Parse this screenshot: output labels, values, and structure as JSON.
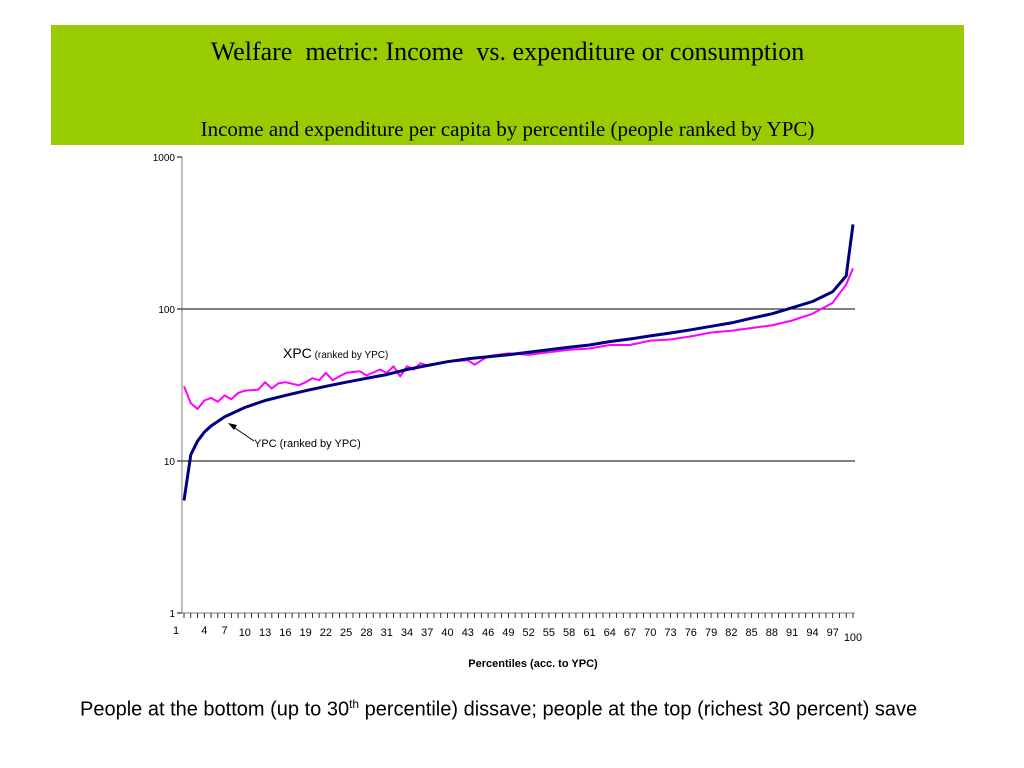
{
  "header": {
    "title": "Welfare  metric: Income  vs. expenditure or consumption",
    "subtitle": "Income and expenditure per capita by percentile (people ranked by YPC)",
    "bg_color": "#99cc00"
  },
  "chart_data": {
    "type": "line",
    "title": "",
    "xlabel": "Percentiles (acc. to YPC)",
    "ylabel": "",
    "yscale": "log",
    "ylim": [
      1,
      1000
    ],
    "xlim": [
      1,
      100
    ],
    "y_ticks": [
      1,
      10,
      100,
      1000
    ],
    "y_tick_labels": [
      "1",
      "10",
      "100",
      "1000"
    ],
    "gridlines_y": [
      10,
      100
    ],
    "x_tick_labels": [
      {
        "x": 1,
        "label": "1"
      },
      {
        "x": 4,
        "label": "4"
      },
      {
        "x": 7,
        "label": "7"
      },
      {
        "x": 10,
        "label": "10"
      },
      {
        "x": 13,
        "label": "13"
      },
      {
        "x": 16,
        "label": "16"
      },
      {
        "x": 19,
        "label": "19"
      },
      {
        "x": 22,
        "label": "22"
      },
      {
        "x": 25,
        "label": "25"
      },
      {
        "x": 28,
        "label": "28"
      },
      {
        "x": 31,
        "label": "31"
      },
      {
        "x": 34,
        "label": "34"
      },
      {
        "x": 37,
        "label": "37"
      },
      {
        "x": 40,
        "label": "40"
      },
      {
        "x": 43,
        "label": "43"
      },
      {
        "x": 46,
        "label": "46"
      },
      {
        "x": 49,
        "label": "49"
      },
      {
        "x": 52,
        "label": "52"
      },
      {
        "x": 55,
        "label": "55"
      },
      {
        "x": 58,
        "label": "58"
      },
      {
        "x": 61,
        "label": "61"
      },
      {
        "x": 64,
        "label": "64"
      },
      {
        "x": 67,
        "label": "67"
      },
      {
        "x": 70,
        "label": "70"
      },
      {
        "x": 73,
        "label": "73"
      },
      {
        "x": 76,
        "label": "76"
      },
      {
        "x": 79,
        "label": "79"
      },
      {
        "x": 82,
        "label": "82"
      },
      {
        "x": 85,
        "label": "85"
      },
      {
        "x": 88,
        "label": "88"
      },
      {
        "x": 91,
        "label": "91"
      },
      {
        "x": 94,
        "label": "94"
      },
      {
        "x": 97,
        "label": "97"
      },
      {
        "x": 100,
        "label": "100"
      }
    ],
    "series": [
      {
        "name": "YPC (ranked by YPC)",
        "color": "#000080",
        "x": [
          1,
          2,
          3,
          4,
          5,
          7,
          10,
          13,
          16,
          19,
          22,
          25,
          28,
          31,
          34,
          37,
          40,
          43,
          46,
          49,
          52,
          55,
          58,
          61,
          64,
          67,
          70,
          73,
          76,
          79,
          82,
          85,
          88,
          91,
          94,
          97,
          99,
          100
        ],
        "y": [
          5.5,
          11,
          13.5,
          15.5,
          17,
          19.5,
          22.5,
          25,
          27,
          29,
          31,
          33,
          35,
          37,
          40,
          42.5,
          45,
          47,
          48.5,
          50,
          52,
          54,
          56,
          58,
          61,
          63.5,
          66.5,
          69.5,
          73,
          77,
          81,
          87,
          93,
          102,
          112,
          130,
          165,
          360
        ]
      },
      {
        "name": "XPC (ranked by YPC)",
        "color": "#ff00ff",
        "x": [
          1,
          2,
          3,
          4,
          5,
          6,
          7,
          8,
          9,
          10,
          12,
          13,
          14,
          15,
          16,
          18,
          19,
          20,
          21,
          22,
          23,
          24,
          25,
          27,
          28,
          30,
          31,
          32,
          33,
          34,
          35,
          36,
          37,
          40,
          43,
          44,
          46,
          49,
          52,
          55,
          58,
          61,
          64,
          67,
          70,
          73,
          76,
          79,
          82,
          85,
          88,
          91,
          94,
          97,
          99,
          100
        ],
        "y": [
          31,
          24,
          22,
          25,
          26,
          24.5,
          27,
          25.5,
          28,
          29,
          29.5,
          33,
          30,
          32.5,
          33,
          31.5,
          33,
          35,
          34,
          38,
          34,
          36,
          38,
          39,
          36.5,
          40,
          38,
          42,
          36,
          42,
          40,
          44,
          42.5,
          45,
          46,
          43,
          49,
          51,
          50,
          52,
          54,
          55,
          58,
          58,
          62,
          63,
          66,
          70,
          72,
          75,
          78,
          84,
          93,
          110,
          145,
          185
        ]
      }
    ],
    "annotations": [
      {
        "series": "XPC",
        "main": "XPC",
        "small": " (ranked by YPC)"
      },
      {
        "series": "YPC",
        "text": "YPC (ranked by YPC)"
      }
    ]
  },
  "footnote": {
    "part1": "People at the bottom (up to 30",
    "sup": "th",
    "part2": " percentile) dissave; people at the top (richest 30 percent) save"
  }
}
